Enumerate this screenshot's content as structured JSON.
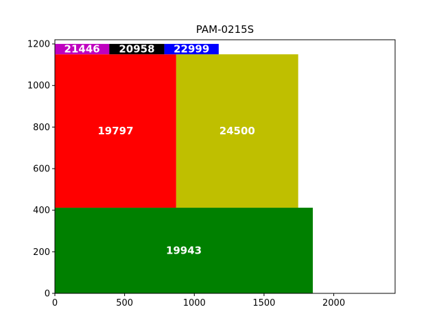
{
  "chart_data": {
    "type": "treemap-rectangles",
    "title": "PAM-0215S",
    "xlim": [
      0,
      2440
    ],
    "ylim": [
      0,
      1220
    ],
    "x_ticks": [
      0,
      500,
      1000,
      1500,
      2000
    ],
    "y_ticks": [
      0,
      200,
      400,
      600,
      800,
      1000,
      1200
    ],
    "grid": false,
    "rectangles": [
      {
        "label": "19943",
        "x": 0,
        "y": 0,
        "w": 1850,
        "h": 412,
        "color": "#008000"
      },
      {
        "label": "19797",
        "x": 0,
        "y": 412,
        "w": 870,
        "h": 738,
        "color": "#ff0000"
      },
      {
        "label": "24500",
        "x": 870,
        "y": 412,
        "w": 875,
        "h": 738,
        "color": "#bfbf00"
      },
      {
        "label": "21446",
        "x": 0,
        "y": 1150,
        "w": 390,
        "h": 50,
        "color": "#bf00bf"
      },
      {
        "label": "20958",
        "x": 390,
        "y": 1150,
        "w": 395,
        "h": 50,
        "color": "#000000"
      },
      {
        "label": "22999",
        "x": 785,
        "y": 1150,
        "w": 390,
        "h": 50,
        "color": "#0000ff"
      }
    ]
  }
}
